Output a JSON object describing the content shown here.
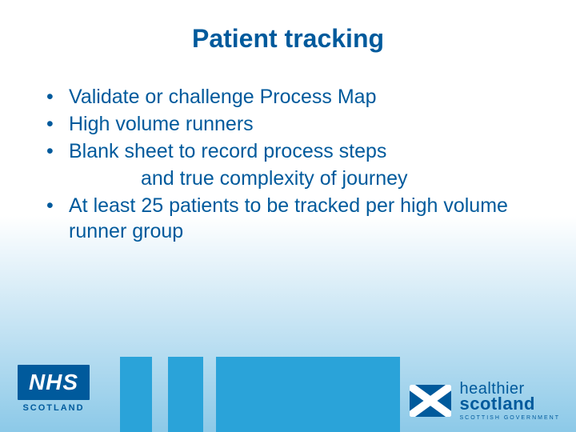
{
  "title": "Patient tracking",
  "bullets": [
    {
      "text": "Validate or challenge Process Map"
    },
    {
      "text": "High volume runners"
    },
    {
      "text": "Blank sheet to record process steps",
      "cont": "and true complexity of journey"
    },
    {
      "text": "At least 25 patients to be tracked per high volume runner group"
    }
  ],
  "nhs": {
    "acronym": "NHS",
    "sub": "SCOTLAND"
  },
  "healthier": {
    "line1": "healthier",
    "line2": "scotland",
    "line3": "SCOTTISH GOVERNMENT"
  },
  "colors": {
    "brand_blue": "#005a9c",
    "light_blue": "#2aa3d9",
    "bg_top": "#ffffff",
    "bg_bottom": "#8cc9e8"
  }
}
